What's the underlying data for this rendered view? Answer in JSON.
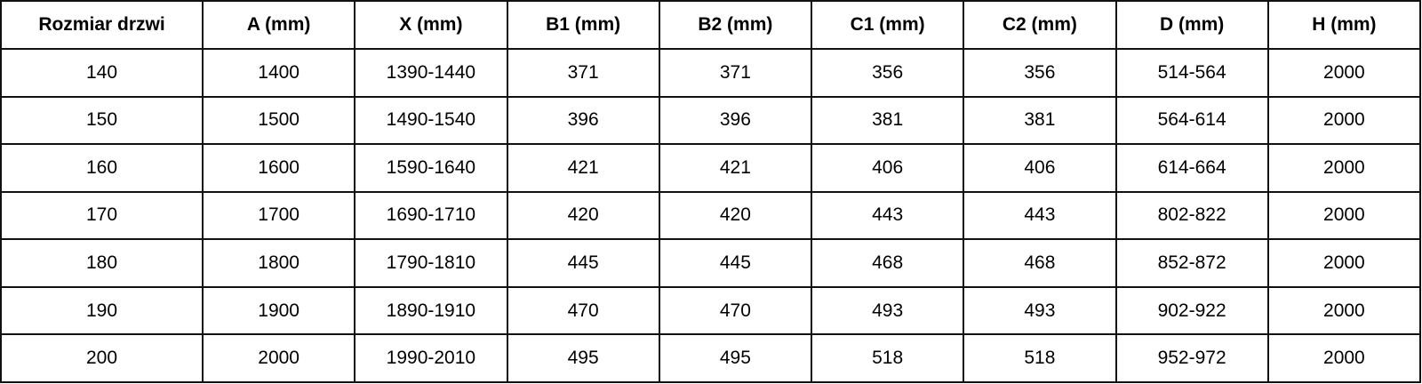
{
  "headers": [
    "Rozmiar drzwi",
    "A (mm)",
    "X (mm)",
    "B1 (mm)",
    "B2 (mm)",
    "C1 (mm)",
    "C2 (mm)",
    "D (mm)",
    "H (mm)"
  ],
  "rows": [
    [
      "140",
      "1400",
      "1390-1440",
      "371",
      "371",
      "356",
      "356",
      "514-564",
      "2000"
    ],
    [
      "150",
      "1500",
      "1490-1540",
      "396",
      "396",
      "381",
      "381",
      "564-614",
      "2000"
    ],
    [
      "160",
      "1600",
      "1590-1640",
      "421",
      "421",
      "406",
      "406",
      "614-664",
      "2000"
    ],
    [
      "170",
      "1700",
      "1690-1710",
      "420",
      "420",
      "443",
      "443",
      "802-822",
      "2000"
    ],
    [
      "180",
      "1800",
      "1790-1810",
      "445",
      "445",
      "468",
      "468",
      "852-872",
      "2000"
    ],
    [
      "190",
      "1900",
      "1890-1910",
      "470",
      "470",
      "493",
      "493",
      "902-922",
      "2000"
    ],
    [
      "200",
      "2000",
      "1990-2010",
      "495",
      "495",
      "518",
      "518",
      "952-972",
      "2000"
    ]
  ]
}
